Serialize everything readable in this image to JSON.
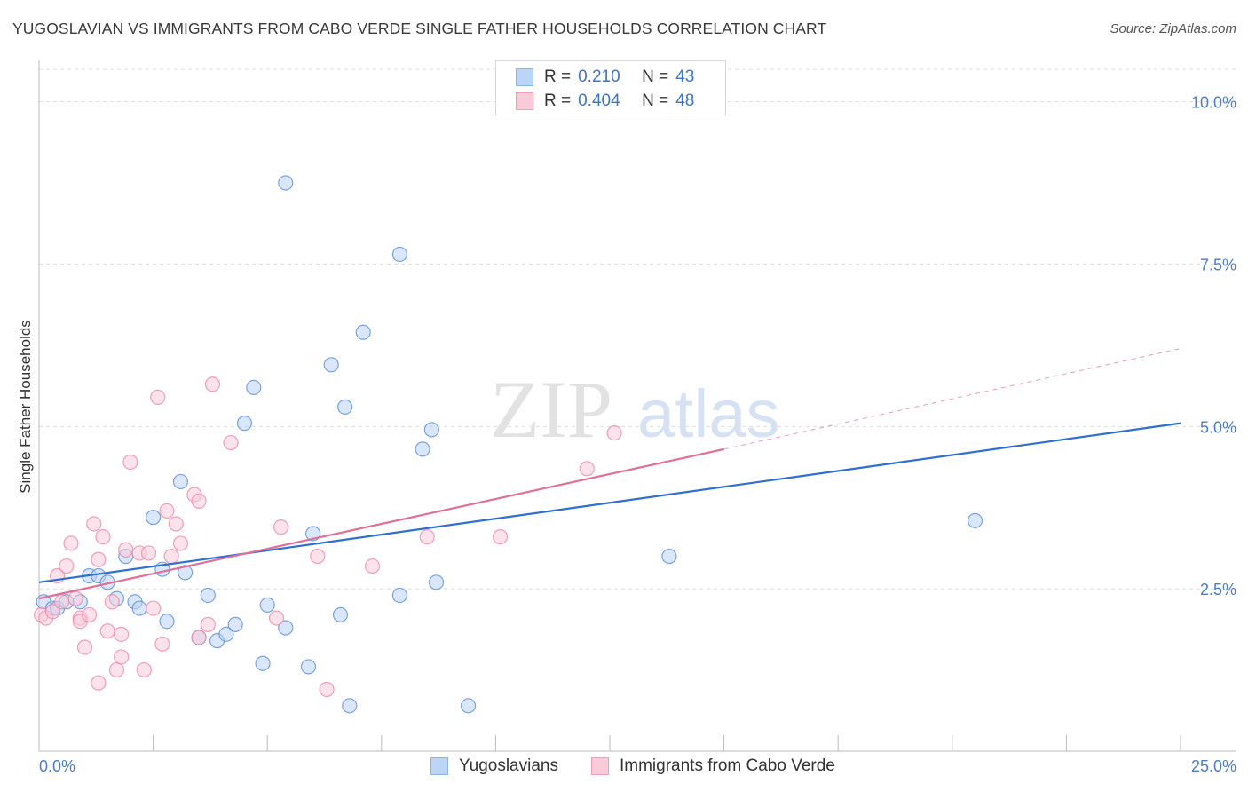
{
  "title": "YUGOSLAVIAN VS IMMIGRANTS FROM CABO VERDE SINGLE FATHER HOUSEHOLDS CORRELATION CHART",
  "source": "Source: ZipAtlas.com",
  "watermark": {
    "zip": "ZIP",
    "atlas": "atlas"
  },
  "legend": {
    "series": [
      {
        "r_label": "R =",
        "r_value": "0.210",
        "n_label": "N =",
        "n_value": "43",
        "color": "#8db4e8",
        "fill": "#bcd4f5"
      },
      {
        "r_label": "R =",
        "r_value": "0.404",
        "n_label": "N =",
        "n_value": "48",
        "color": "#f0a0b8",
        "fill": "#f9cbd8"
      }
    ]
  },
  "bottom_legend": [
    "Yugoslavians",
    "Immigrants from Cabo Verde"
  ],
  "chart_data": {
    "type": "scatter",
    "title": "YUGOSLAVIAN VS IMMIGRANTS FROM CABO VERDE SINGLE FATHER HOUSEHOLDS CORRELATION CHART",
    "xlabel": "",
    "ylabel": "Single Father Households",
    "xlim": [
      0,
      25
    ],
    "ylim": [
      0,
      10.5
    ],
    "x_tick_labels": [
      "0.0%",
      "25.0%"
    ],
    "y_ticks": [
      2.5,
      5.0,
      7.5,
      10.0
    ],
    "y_tick_labels": [
      "2.5%",
      "5.0%",
      "7.5%",
      "10.0%"
    ],
    "grid": true,
    "series": [
      {
        "name": "Yugoslavians",
        "color": "#5b8fd6",
        "fill": "#bcd4f5",
        "trend": {
          "x": [
            0,
            25
          ],
          "y": [
            2.6,
            5.05
          ],
          "color": "#2f6fd0"
        },
        "points": [
          [
            0.1,
            2.3
          ],
          [
            0.3,
            2.2
          ],
          [
            0.4,
            2.2
          ],
          [
            0.6,
            2.3
          ],
          [
            0.9,
            2.3
          ],
          [
            1.1,
            2.7
          ],
          [
            1.3,
            2.7
          ],
          [
            1.5,
            2.6
          ],
          [
            1.7,
            2.35
          ],
          [
            1.9,
            3.0
          ],
          [
            2.1,
            2.3
          ],
          [
            2.2,
            2.2
          ],
          [
            2.5,
            3.6
          ],
          [
            2.7,
            2.8
          ],
          [
            2.8,
            2.0
          ],
          [
            3.1,
            4.15
          ],
          [
            3.2,
            2.75
          ],
          [
            3.5,
            1.75
          ],
          [
            3.7,
            2.4
          ],
          [
            3.9,
            1.7
          ],
          [
            4.1,
            1.8
          ],
          [
            4.3,
            1.95
          ],
          [
            4.5,
            5.05
          ],
          [
            4.7,
            5.6
          ],
          [
            4.9,
            1.35
          ],
          [
            5.0,
            2.25
          ],
          [
            5.4,
            1.9
          ],
          [
            5.4,
            8.75
          ],
          [
            5.9,
            1.3
          ],
          [
            6.0,
            3.35
          ],
          [
            6.4,
            5.95
          ],
          [
            6.6,
            2.1
          ],
          [
            6.7,
            5.3
          ],
          [
            6.8,
            0.7
          ],
          [
            7.1,
            6.45
          ],
          [
            7.9,
            7.65
          ],
          [
            7.9,
            2.4
          ],
          [
            8.4,
            4.65
          ],
          [
            8.6,
            4.95
          ],
          [
            8.7,
            2.6
          ],
          [
            9.4,
            0.7
          ],
          [
            13.8,
            3.0
          ],
          [
            20.5,
            3.55
          ]
        ]
      },
      {
        "name": "Immigrants from Cabo Verde",
        "color": "#ec8aa8",
        "fill": "#f9cbd8",
        "trend": {
          "x": [
            0,
            15
          ],
          "y": [
            2.35,
            4.65
          ],
          "color": "#e07098",
          "dashed_extension": {
            "x": [
              15,
              25
            ],
            "y": [
              4.65,
              6.2
            ]
          }
        },
        "points": [
          [
            0.05,
            2.1
          ],
          [
            0.15,
            2.05
          ],
          [
            0.3,
            2.15
          ],
          [
            0.4,
            2.7
          ],
          [
            0.5,
            2.3
          ],
          [
            0.6,
            2.85
          ],
          [
            0.7,
            3.2
          ],
          [
            0.8,
            2.35
          ],
          [
            0.9,
            2.05
          ],
          [
            0.9,
            2.0
          ],
          [
            1.0,
            1.6
          ],
          [
            1.1,
            2.1
          ],
          [
            1.2,
            3.5
          ],
          [
            1.3,
            2.95
          ],
          [
            1.3,
            1.05
          ],
          [
            1.4,
            3.3
          ],
          [
            1.5,
            1.85
          ],
          [
            1.6,
            2.3
          ],
          [
            1.7,
            1.25
          ],
          [
            1.8,
            1.45
          ],
          [
            1.8,
            1.8
          ],
          [
            1.9,
            3.1
          ],
          [
            2.0,
            4.45
          ],
          [
            2.2,
            3.05
          ],
          [
            2.3,
            1.25
          ],
          [
            2.4,
            3.05
          ],
          [
            2.5,
            2.2
          ],
          [
            2.6,
            5.45
          ],
          [
            2.7,
            1.65
          ],
          [
            2.8,
            3.7
          ],
          [
            2.9,
            3.0
          ],
          [
            3.0,
            3.5
          ],
          [
            3.1,
            3.2
          ],
          [
            3.4,
            3.95
          ],
          [
            3.5,
            3.85
          ],
          [
            3.5,
            1.75
          ],
          [
            3.7,
            1.95
          ],
          [
            3.8,
            5.65
          ],
          [
            4.2,
            4.75
          ],
          [
            5.2,
            2.05
          ],
          [
            5.3,
            3.45
          ],
          [
            6.1,
            3.0
          ],
          [
            6.3,
            0.95
          ],
          [
            7.3,
            2.85
          ],
          [
            8.5,
            3.3
          ],
          [
            10.1,
            3.3
          ],
          [
            12.0,
            4.35
          ],
          [
            12.6,
            4.9
          ]
        ]
      }
    ]
  }
}
